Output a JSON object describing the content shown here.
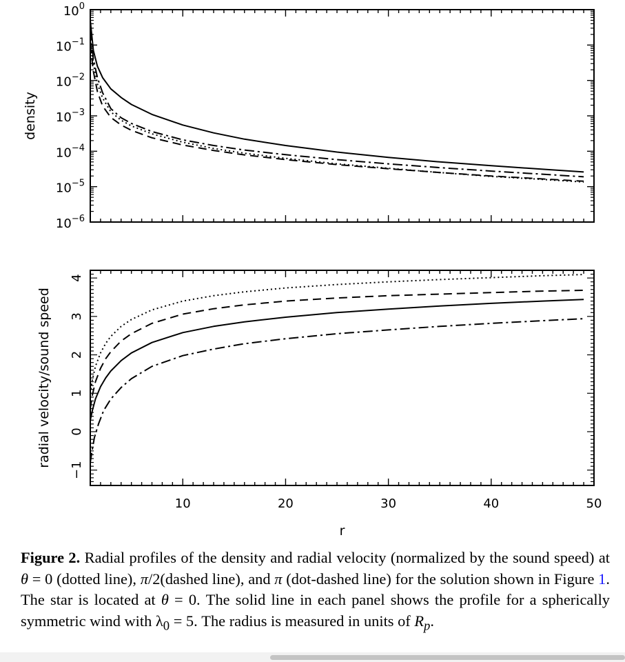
{
  "chart_data": [
    {
      "type": "line",
      "ylabel": "density",
      "yscale": "log",
      "ylim": [
        1e-06,
        1
      ],
      "xlim": [
        1,
        50
      ],
      "y_tick_labels": [
        {
          "base": "10",
          "exp": "0"
        },
        {
          "base": "10",
          "exp": "−1"
        },
        {
          "base": "10",
          "exp": "−2"
        },
        {
          "base": "10",
          "exp": "−3"
        },
        {
          "base": "10",
          "exp": "−4"
        },
        {
          "base": "10",
          "exp": "−5"
        },
        {
          "base": "10",
          "exp": "−6"
        }
      ],
      "series": [
        {
          "style": "solid",
          "x": [
            1.0,
            1.3,
            1.7,
            2.2,
            3,
            4,
            5,
            7,
            10,
            13,
            16,
            20,
            25,
            30,
            35,
            40,
            45,
            49
          ],
          "y": [
            0.5,
            0.07,
            0.025,
            0.012,
            0.0058,
            0.0033,
            0.0021,
            0.0011,
            0.00055,
            0.00033,
            0.00022,
            0.000145,
            9.5e-05,
            6.7e-05,
            5e-05,
            3.9e-05,
            3.1e-05,
            2.6e-05
          ]
        },
        {
          "style": "dotted",
          "x": [
            1.0,
            1.3,
            1.7,
            2.2,
            3,
            4,
            5,
            7,
            10,
            13,
            16,
            20,
            25,
            30,
            35,
            40,
            45,
            49
          ],
          "y": [
            0.15,
            0.03,
            0.008,
            0.0032,
            0.0013,
            0.00075,
            0.00052,
            0.00031,
            0.00018,
            0.00012,
            8.8e-05,
            6.3e-05,
            4.4e-05,
            3.3e-05,
            2.5e-05,
            1.95e-05,
            1.6e-05,
            1.35e-05
          ]
        },
        {
          "style": "dashed",
          "x": [
            1.0,
            1.3,
            1.7,
            2.2,
            3,
            4,
            5,
            7,
            10,
            13,
            16,
            20,
            25,
            30,
            35,
            40,
            45,
            49
          ],
          "y": [
            0.1,
            0.018,
            0.0048,
            0.0019,
            0.0009,
            0.00055,
            0.00039,
            0.00024,
            0.00015,
            0.000105,
            7.9e-05,
            5.8e-05,
            4.2e-05,
            3.2e-05,
            2.5e-05,
            2e-05,
            1.65e-05,
            1.42e-05
          ]
        },
        {
          "style": "dashdot",
          "x": [
            1.0,
            1.3,
            1.7,
            2.2,
            3,
            4,
            5,
            7,
            10,
            13,
            16,
            20,
            25,
            30,
            35,
            40,
            45,
            49
          ],
          "y": [
            0.25,
            0.04,
            0.012,
            0.0045,
            0.0016,
            0.00088,
            0.00061,
            0.00036,
            0.00021,
            0.000145,
            0.000108,
            8e-05,
            5.8e-05,
            4.4e-05,
            3.45e-05,
            2.75e-05,
            2.25e-05,
            1.9e-05
          ]
        }
      ]
    },
    {
      "type": "line",
      "xlabel": "r",
      "ylabel": "radial velocity/sound speed",
      "xlim": [
        1,
        50
      ],
      "ylim": [
        -1.4,
        4.2
      ],
      "x_ticks": [
        10,
        20,
        30,
        40,
        50
      ],
      "y_ticks": [
        -1,
        0,
        1,
        2,
        3,
        4
      ],
      "y_tick_labels": [
        "−1",
        "0",
        "1",
        "2",
        "3",
        "4"
      ],
      "series": [
        {
          "style": "solid",
          "x": [
            1.0,
            1.2,
            1.5,
            2,
            2.5,
            3,
            4,
            5,
            7,
            10,
            13,
            16,
            20,
            25,
            30,
            35,
            40,
            45,
            49
          ],
          "y": [
            0.3,
            0.55,
            0.85,
            1.17,
            1.4,
            1.58,
            1.85,
            2.05,
            2.32,
            2.58,
            2.74,
            2.86,
            2.98,
            3.1,
            3.19,
            3.27,
            3.34,
            3.4,
            3.44
          ]
        },
        {
          "style": "dotted",
          "x": [
            1.0,
            1.2,
            1.5,
            2,
            2.5,
            3,
            4,
            5,
            7,
            10,
            13,
            16,
            20,
            25,
            30,
            35,
            40,
            45,
            49
          ],
          "y": [
            1.0,
            1.35,
            1.7,
            2.05,
            2.3,
            2.48,
            2.74,
            2.92,
            3.17,
            3.4,
            3.54,
            3.64,
            3.74,
            3.83,
            3.9,
            3.96,
            4.01,
            4.06,
            4.09
          ]
        },
        {
          "style": "dashed",
          "x": [
            1.0,
            1.2,
            1.5,
            2,
            2.5,
            3,
            4,
            5,
            7,
            10,
            13,
            16,
            20,
            25,
            30,
            35,
            40,
            45,
            49
          ],
          "y": [
            0.6,
            0.95,
            1.3,
            1.65,
            1.9,
            2.08,
            2.36,
            2.55,
            2.82,
            3.06,
            3.2,
            3.3,
            3.4,
            3.48,
            3.54,
            3.58,
            3.62,
            3.66,
            3.68
          ]
        },
        {
          "style": "dashdot",
          "x": [
            1.0,
            1.15,
            1.4,
            1.8,
            2.3,
            3,
            4,
            5,
            7,
            10,
            13,
            16,
            20,
            25,
            30,
            35,
            40,
            45,
            49
          ],
          "y": [
            -0.8,
            -0.55,
            -0.15,
            0.2,
            0.55,
            0.85,
            1.15,
            1.38,
            1.7,
            1.98,
            2.15,
            2.29,
            2.42,
            2.55,
            2.65,
            2.74,
            2.82,
            2.89,
            2.94
          ]
        }
      ]
    }
  ],
  "caption": {
    "label": "Figure 2.",
    "text1": " Radial profiles of the density and radial velocity (normalized by the sound speed) at ",
    "theta": "θ",
    "eq0": " = 0 (dotted line), ",
    "pi": "π",
    "half": "/2(dashed line), and ",
    "text2": " (dot-dashed line) for the solution shown in Figure ",
    "fig_ref": "1",
    "text3": ". The star is located at ",
    "text4": " = 0. The solid line in each panel shows the profile for a spherically symmetric wind with λ",
    "lambda_sub": "0",
    "text5": " = 5. The radius is measured in units of ",
    "rp_R": "R",
    "rp_sub": "p",
    "text6": "."
  }
}
